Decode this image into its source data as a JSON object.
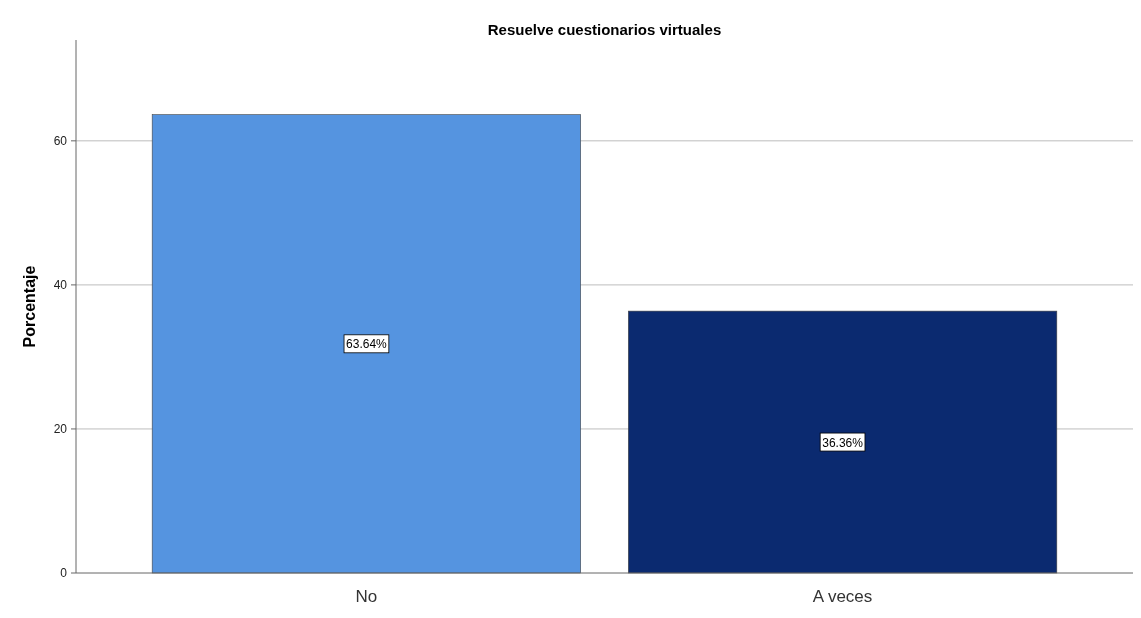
{
  "chart_data": {
    "type": "bar",
    "title": "Resuelve cuestionarios virtuales",
    "ylabel": "Porcentaje",
    "categories": [
      "No",
      "A veces"
    ],
    "values": [
      63.64,
      36.36
    ],
    "colors": [
      "#5594e0",
      "#0b2a70"
    ],
    "value_labels": [
      "63.64%",
      "36.36%"
    ],
    "ylim": [
      0,
      74
    ],
    "yticks": [
      0,
      20,
      40,
      60
    ],
    "grid": "y"
  }
}
